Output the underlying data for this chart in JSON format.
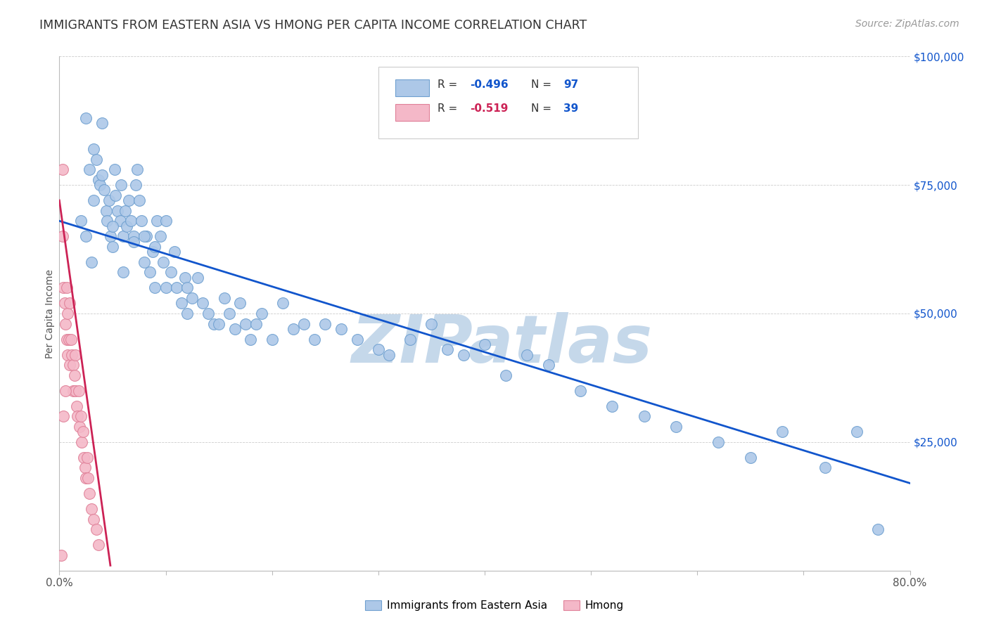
{
  "title": "IMMIGRANTS FROM EASTERN ASIA VS HMONG PER CAPITA INCOME CORRELATION CHART",
  "source": "Source: ZipAtlas.com",
  "ylabel": "Per Capita Income",
  "xlim": [
    0.0,
    0.8
  ],
  "ylim": [
    0,
    100000
  ],
  "xticks": [
    0.0,
    0.1,
    0.2,
    0.3,
    0.4,
    0.5,
    0.6,
    0.7,
    0.8
  ],
  "xticklabels": [
    "0.0%",
    "",
    "",
    "",
    "",
    "",
    "",
    "",
    "80.0%"
  ],
  "yticks": [
    0,
    25000,
    50000,
    75000,
    100000
  ],
  "yticklabels": [
    "",
    "$25,000",
    "$50,000",
    "$75,000",
    "$100,000"
  ],
  "blue_R": "-0.496",
  "blue_N": "97",
  "pink_R": "-0.519",
  "pink_N": "39",
  "blue_color": "#adc8e8",
  "blue_edge": "#6fa0d0",
  "pink_color": "#f4b8c8",
  "pink_edge": "#e08098",
  "blue_line_color": "#1155cc",
  "pink_line_color": "#cc2255",
  "watermark": "ZIPatlas",
  "watermark_color": "#c5d8ea",
  "legend_text_color": "#333333",
  "legend_value_color": "#1155cc",
  "legend_pink_value_color": "#cc2255",
  "blue_scatter_x": [
    0.02,
    0.025,
    0.028,
    0.032,
    0.032,
    0.035,
    0.037,
    0.038,
    0.04,
    0.042,
    0.044,
    0.045,
    0.047,
    0.048,
    0.05,
    0.052,
    0.053,
    0.055,
    0.057,
    0.058,
    0.06,
    0.062,
    0.063,
    0.065,
    0.067,
    0.07,
    0.072,
    0.073,
    0.075,
    0.077,
    0.08,
    0.082,
    0.085,
    0.088,
    0.09,
    0.092,
    0.095,
    0.098,
    0.1,
    0.105,
    0.108,
    0.11,
    0.115,
    0.118,
    0.12,
    0.125,
    0.13,
    0.135,
    0.14,
    0.145,
    0.15,
    0.155,
    0.16,
    0.165,
    0.17,
    0.175,
    0.18,
    0.185,
    0.19,
    0.2,
    0.21,
    0.22,
    0.23,
    0.24,
    0.25,
    0.265,
    0.28,
    0.3,
    0.31,
    0.33,
    0.35,
    0.365,
    0.38,
    0.4,
    0.42,
    0.44,
    0.46,
    0.49,
    0.52,
    0.55,
    0.58,
    0.62,
    0.65,
    0.68,
    0.72,
    0.75,
    0.77,
    0.025,
    0.03,
    0.04,
    0.05,
    0.06,
    0.07,
    0.08,
    0.09,
    0.1,
    0.12
  ],
  "blue_scatter_y": [
    68000,
    65000,
    78000,
    82000,
    72000,
    80000,
    76000,
    75000,
    77000,
    74000,
    70000,
    68000,
    72000,
    65000,
    63000,
    78000,
    73000,
    70000,
    68000,
    75000,
    65000,
    70000,
    67000,
    72000,
    68000,
    65000,
    75000,
    78000,
    72000,
    68000,
    60000,
    65000,
    58000,
    62000,
    55000,
    68000,
    65000,
    60000,
    55000,
    58000,
    62000,
    55000,
    52000,
    57000,
    50000,
    53000,
    57000,
    52000,
    50000,
    48000,
    48000,
    53000,
    50000,
    47000,
    52000,
    48000,
    45000,
    48000,
    50000,
    45000,
    52000,
    47000,
    48000,
    45000,
    48000,
    47000,
    45000,
    43000,
    42000,
    45000,
    48000,
    43000,
    42000,
    44000,
    38000,
    42000,
    40000,
    35000,
    32000,
    30000,
    28000,
    25000,
    22000,
    27000,
    20000,
    27000,
    8000,
    88000,
    60000,
    87000,
    67000,
    58000,
    64000,
    65000,
    63000,
    68000,
    55000
  ],
  "pink_scatter_x": [
    0.003,
    0.004,
    0.005,
    0.006,
    0.007,
    0.007,
    0.008,
    0.008,
    0.009,
    0.01,
    0.01,
    0.011,
    0.012,
    0.013,
    0.013,
    0.014,
    0.015,
    0.015,
    0.016,
    0.017,
    0.018,
    0.019,
    0.02,
    0.021,
    0.022,
    0.023,
    0.024,
    0.025,
    0.026,
    0.027,
    0.028,
    0.03,
    0.032,
    0.035,
    0.037,
    0.003,
    0.004,
    0.006,
    0.002
  ],
  "pink_scatter_y": [
    65000,
    55000,
    52000,
    48000,
    55000,
    45000,
    50000,
    42000,
    45000,
    40000,
    52000,
    45000,
    42000,
    40000,
    35000,
    38000,
    35000,
    42000,
    32000,
    30000,
    35000,
    28000,
    30000,
    25000,
    27000,
    22000,
    20000,
    18000,
    22000,
    18000,
    15000,
    12000,
    10000,
    8000,
    5000,
    78000,
    30000,
    35000,
    3000
  ],
  "blue_trendline_x": [
    0.0,
    0.8
  ],
  "blue_trendline_y": [
    68000,
    17000
  ],
  "pink_trendline_x": [
    0.0,
    0.048
  ],
  "pink_trendline_y": [
    72000,
    1000
  ]
}
